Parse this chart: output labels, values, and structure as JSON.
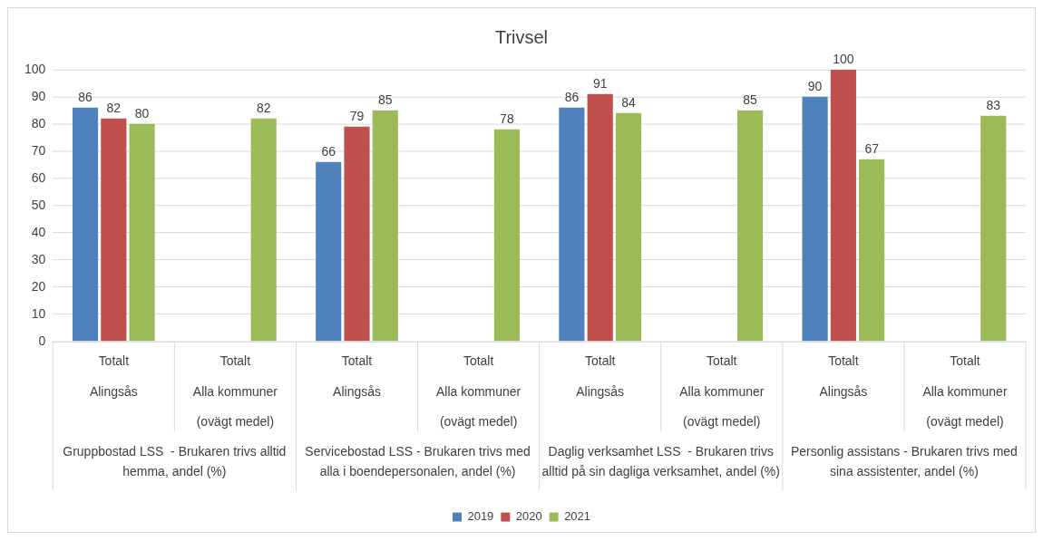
{
  "chart_data": {
    "type": "bar",
    "title": "Trivsel",
    "categories": [
      "Totalt\nAlingsås",
      "Totalt\nAlla kommuner\n(ovägt medel)",
      "Totalt\nAlingsås",
      "Totalt\nAlla kommuner\n(ovägt medel)",
      "Totalt\nAlingsås",
      "Totalt\nAlla kommuner\n(ovägt medel)",
      "Totalt\nAlingsås",
      "Totalt\nAlla kommuner\n(ovägt medel)"
    ],
    "series": [
      {
        "name": "2019",
        "color": "#4f81bd",
        "values": [
          86,
          null,
          66,
          null,
          86,
          null,
          90,
          null
        ]
      },
      {
        "name": "2020",
        "color": "#c0504d",
        "values": [
          82,
          null,
          79,
          null,
          91,
          null,
          100,
          null
        ]
      },
      {
        "name": "2021",
        "color": "#9bbb59",
        "values": [
          80,
          82,
          85,
          78,
          84,
          85,
          67,
          83
        ]
      }
    ],
    "annotations": [
      "Gruppbostad LSS  - Brukaren trivs alltid\nhemma, andel (%)",
      "Servicebostad LSS - Brukaren trivs med\nalla i boendepersonalen, andel (%)",
      "Daglig verksamhet LSS  - Brukaren trivs\nalltid på sin dagliga verksamhet, andel (%)",
      "Personlig assistans - Brukaren trivs med\nsina assistenter, andel (%)"
    ],
    "ylim": [
      0,
      100
    ],
    "yticks": [
      0,
      10,
      20,
      30,
      40,
      50,
      60,
      70,
      80,
      90,
      100
    ],
    "grid": "y",
    "legend": "bottom",
    "data_labels": true
  }
}
